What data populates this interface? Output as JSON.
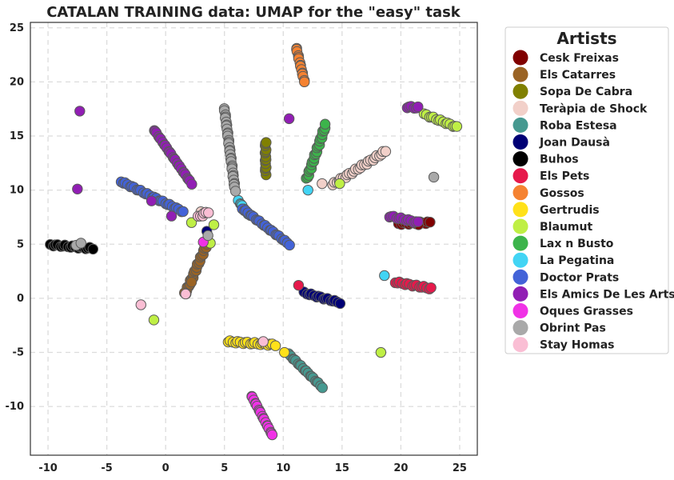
{
  "chart_data": {
    "type": "scatter",
    "title": "CATALAN TRAINING data: UMAP for the \"easy\" task",
    "xlabel": "",
    "ylabel": "",
    "xlim": [
      -11.5,
      26.5
    ],
    "ylim": [
      -14.5,
      25.5
    ],
    "xticks": [
      -10,
      -5,
      0,
      5,
      10,
      15,
      20,
      25
    ],
    "yticks": [
      -10,
      -5,
      0,
      5,
      10,
      15,
      20,
      25
    ],
    "grid": true,
    "legend_title": "Artists",
    "legend_position": "outside-right",
    "series": [
      {
        "name": "Cesk Freixas",
        "color": "#800000",
        "segments": [
          [
            [
              19.8,
              6.9
            ],
            [
              22.5,
              7.0
            ]
          ]
        ],
        "points": [
          [
            21.5,
            6.8
          ]
        ]
      },
      {
        "name": "Els Catarres",
        "color": "#9a6324",
        "segments": [
          [
            [
              1.7,
              0.5
            ],
            [
              3.5,
              5.0
            ]
          ]
        ],
        "points": [
          [
            2.2,
            1.5
          ],
          [
            1.6,
            0.5
          ]
        ]
      },
      {
        "name": "Sopa De Cabra",
        "color": "#808000",
        "segments": [
          [
            [
              8.5,
              11.5
            ],
            [
              8.5,
              14.5
            ]
          ]
        ],
        "points": []
      },
      {
        "name": "Teràpia de Shock",
        "color": "#f2d0c9",
        "segments": [
          [
            [
              14.2,
              10.5
            ],
            [
              18.7,
              13.6
            ]
          ]
        ],
        "points": [
          [
            13.3,
            10.6
          ],
          [
            3.0,
            8.0
          ]
        ]
      },
      {
        "name": "Roba Estesa",
        "color": "#469990",
        "segments": [
          [
            [
              10.5,
              -5.2
            ],
            [
              13.3,
              -8.2
            ]
          ]
        ],
        "points": []
      },
      {
        "name": "Joan Dausà",
        "color": "#000075",
        "segments": [
          [
            [
              11.8,
              0.5
            ],
            [
              14.8,
              -0.4
            ]
          ]
        ],
        "points": [
          [
            3.5,
            6.2
          ]
        ]
      },
      {
        "name": "Buhos",
        "color": "#000000",
        "segments": [
          [
            [
              -9.8,
              4.95
            ],
            [
              -6.2,
              4.6
            ]
          ]
        ],
        "points": []
      },
      {
        "name": "Els Pets",
        "color": "#e6194b",
        "segments": [
          [
            [
              19.5,
              1.5
            ],
            [
              22.6,
              0.9
            ]
          ]
        ],
        "points": [
          [
            11.3,
            1.2
          ]
        ]
      },
      {
        "name": "Gossos",
        "color": "#f58231",
        "segments": [
          [
            [
              11.1,
              23.2
            ],
            [
              11.8,
              20.0
            ]
          ]
        ],
        "points": []
      },
      {
        "name": "Gertrudis",
        "color": "#ffe119",
        "segments": [
          [
            [
              5.3,
              -4.0
            ],
            [
              9.3,
              -4.3
            ]
          ]
        ],
        "points": [
          [
            10.1,
            -5.0
          ]
        ]
      },
      {
        "name": "Blaumut",
        "color": "#bfef45",
        "segments": [
          [
            [
              22.0,
              17.0
            ],
            [
              24.8,
              15.8
            ]
          ]
        ],
        "points": [
          [
            18.3,
            -5.0
          ],
          [
            -1.0,
            -2.0
          ],
          [
            2.2,
            7.0
          ],
          [
            3.8,
            5.1
          ],
          [
            4.1,
            6.8
          ],
          [
            14.8,
            10.6
          ]
        ]
      },
      {
        "name": "Lax n Busto",
        "color": "#3cb44b",
        "segments": [
          [
            [
              12.0,
              11.0
            ],
            [
              13.6,
              16.0
            ]
          ]
        ],
        "points": []
      },
      {
        "name": "La Pegatina",
        "color": "#42d4f4",
        "segments": [
          [
            [
              6.2,
              9.0
            ],
            [
              7.0,
              7.8
            ]
          ]
        ],
        "points": [
          [
            12.1,
            10.0
          ],
          [
            18.6,
            2.1
          ]
        ]
      },
      {
        "name": "Doctor Prats",
        "color": "#4363d8",
        "segments": [
          [
            [
              -3.8,
              10.8
            ],
            [
              1.5,
              8.0
            ]
          ],
          [
            [
              6.5,
              8.3
            ],
            [
              10.5,
              5.0
            ]
          ]
        ],
        "points": []
      },
      {
        "name": "Els Amics De Les Arts",
        "color": "#911eb4",
        "segments": [
          [
            [
              -1.0,
              15.6
            ],
            [
              2.2,
              10.6
            ]
          ],
          [
            [
              19.0,
              7.6
            ],
            [
              21.5,
              7.0
            ]
          ],
          [
            [
              20.5,
              17.7
            ],
            [
              21.5,
              17.6
            ]
          ]
        ],
        "points": [
          [
            -7.3,
            17.3
          ],
          [
            -7.5,
            10.1
          ],
          [
            10.5,
            16.6
          ],
          [
            -1.2,
            9.0
          ],
          [
            0.5,
            7.6
          ]
        ]
      },
      {
        "name": "Oques Grasses",
        "color": "#f032e6",
        "segments": [
          [
            [
              7.3,
              -9.0
            ],
            [
              9.1,
              -12.7
            ]
          ]
        ],
        "points": [
          [
            3.2,
            5.2
          ]
        ]
      },
      {
        "name": "Obrint Pas",
        "color": "#a9a9a9",
        "segments": [
          [
            [
              5.0,
              17.5
            ],
            [
              5.9,
              10.0
            ]
          ]
        ],
        "points": [
          [
            -7.6,
            4.9
          ],
          [
            -7.2,
            5.1
          ],
          [
            22.8,
            11.2
          ],
          [
            3.6,
            5.8
          ]
        ]
      },
      {
        "name": "Stay Homas",
        "color": "#fabed4",
        "segments": [
          [
            [
              2.8,
              7.5
            ],
            [
              3.6,
              8.0
            ]
          ]
        ],
        "points": [
          [
            -2.1,
            -0.6
          ],
          [
            8.3,
            -4.0
          ],
          [
            1.7,
            0.4
          ]
        ]
      }
    ]
  }
}
